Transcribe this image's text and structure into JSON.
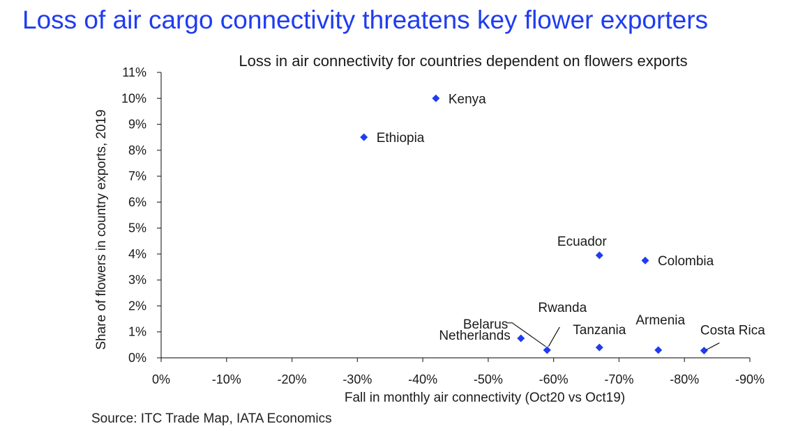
{
  "header": {
    "title": "Loss of air cargo connectivity threatens key flower exporters"
  },
  "footer": {
    "source": "Source: ITC Trade Map, IATA Economics"
  },
  "colors": {
    "accent": "#1f3cf0",
    "marker": "#1f3cf0",
    "axis": "#333333"
  },
  "chart_data": {
    "type": "scatter",
    "title": "Loss in air connectivity for countries dependent on flowers exports",
    "xlabel": "Fall in monthly air connectivity (Oct20 vs Oct19)",
    "ylabel": "Share of flowers in country exports, 2019",
    "xlim": [
      0,
      -90
    ],
    "ylim": [
      0,
      11
    ],
    "x_ticks": [
      "0%",
      "-10%",
      "-20%",
      "-30%",
      "-40%",
      "-50%",
      "-60%",
      "-70%",
      "-80%",
      "-90%"
    ],
    "y_ticks": [
      "0%",
      "1%",
      "2%",
      "3%",
      "4%",
      "5%",
      "6%",
      "7%",
      "8%",
      "9%",
      "10%",
      "11%"
    ],
    "grid": false,
    "marker": "diamond",
    "points": [
      {
        "label": "Kenya",
        "x": -42,
        "y": 10.0
      },
      {
        "label": "Ethiopia",
        "x": -31,
        "y": 8.5
      },
      {
        "label": "Ecuador",
        "x": -67,
        "y": 3.95
      },
      {
        "label": "Colombia",
        "x": -74,
        "y": 3.75
      },
      {
        "label": "Netherlands",
        "x": -55,
        "y": 0.75
      },
      {
        "label": "Belarus",
        "x": -59,
        "y": 0.3
      },
      {
        "label": "Rwanda",
        "x": -59,
        "y": 0.3
      },
      {
        "label": "Tanzania",
        "x": -67,
        "y": 0.4
      },
      {
        "label": "Armenia",
        "x": -76,
        "y": 0.3
      },
      {
        "label": "Costa Rica",
        "x": -83,
        "y": 0.28
      }
    ]
  }
}
